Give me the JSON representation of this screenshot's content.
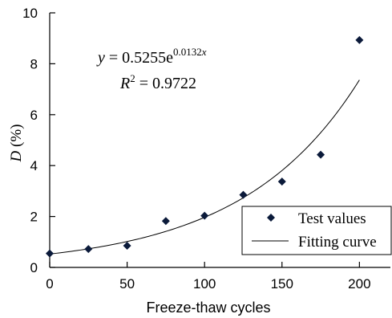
{
  "chart_data": {
    "type": "scatter",
    "title": "",
    "xlabel": "Freeze-thaw cycles",
    "ylabel": {
      "italic": "D",
      "rest": " (%)"
    },
    "xlim": [
      0,
      220
    ],
    "ylim": [
      0,
      10
    ],
    "x_ticks": [
      0,
      50,
      100,
      150,
      200
    ],
    "y_ticks": [
      0,
      2,
      4,
      6,
      8,
      10
    ],
    "grid": false,
    "legend": "bottom-right",
    "series": [
      {
        "name": "Test values",
        "kind": "scatter",
        "marker": "diamond",
        "color": "#0b1a3a",
        "points": [
          {
            "x": 0,
            "y": 0.55
          },
          {
            "x": 25,
            "y": 0.72
          },
          {
            "x": 50,
            "y": 0.85
          },
          {
            "x": 75,
            "y": 1.82
          },
          {
            "x": 100,
            "y": 2.03
          },
          {
            "x": 125,
            "y": 2.85
          },
          {
            "x": 150,
            "y": 3.37
          },
          {
            "x": 175,
            "y": 4.43
          },
          {
            "x": 200,
            "y": 8.93
          }
        ]
      },
      {
        "name": "Fitting curve",
        "kind": "line",
        "color": "#000000",
        "equation": {
          "a": 0.5255,
          "b": 0.0132
        },
        "x_range": [
          0,
          200
        ]
      }
    ],
    "annotations": {
      "equation": {
        "y_var": "y",
        "equals": " = 0.5255e",
        "exponent_num": "0.0132",
        "exponent_var": "x"
      },
      "r_squared": {
        "var": "R",
        "sup": "2",
        "equals": " = 0.9722"
      }
    }
  }
}
